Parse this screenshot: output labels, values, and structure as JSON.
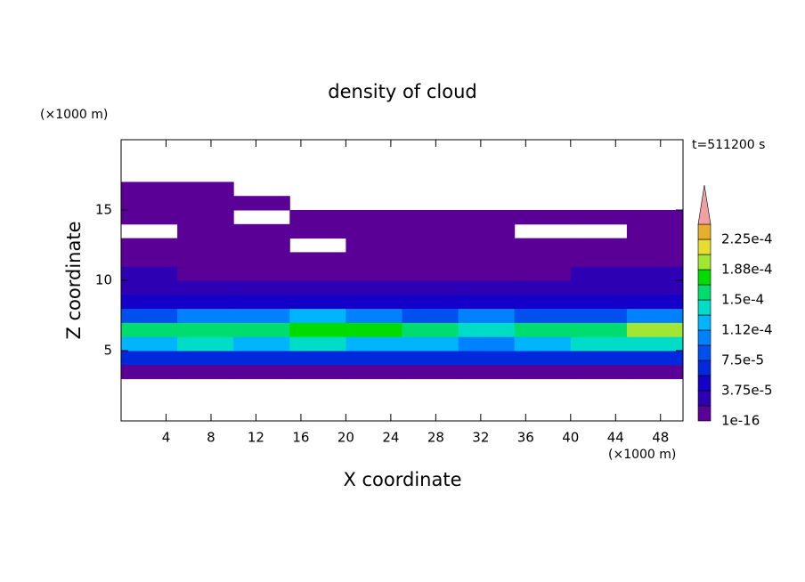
{
  "chart_data": {
    "type": "contour",
    "title": "density of cloud",
    "xlabel": "X coordinate",
    "ylabel": "Z coordinate",
    "x_unit": "(×1000 m)",
    "y_unit": "(×1000 m)",
    "annotation": "t=511200 s",
    "xlim": [
      0,
      50
    ],
    "ylim": [
      0,
      20
    ],
    "xticks": [
      4,
      8,
      12,
      16,
      20,
      24,
      28,
      32,
      36,
      40,
      44,
      48
    ],
    "yticks": [
      5,
      10,
      15
    ],
    "x": [
      2.5,
      7.5,
      12.5,
      17.5,
      22.5,
      27.5,
      32.5,
      37.5,
      42.5,
      47.5
    ],
    "y": [
      3.5,
      4.5,
      5.5,
      6.5,
      7.5,
      8.5,
      9.5,
      10.5,
      11.5,
      12.5,
      13.5,
      14.5,
      15.5,
      16.5
    ],
    "values": [
      [
        1.2e-05,
        1.5e-05,
        1.2e-05,
        1.5e-05,
        1.2e-05,
        1.5e-05,
        1.8e-05,
        1.2e-05,
        1.5e-05,
        1.2e-05
      ],
      [
        6e-05,
        6.5e-05,
        6e-05,
        6.5e-05,
        6e-05,
        6.5e-05,
        7e-05,
        6e-05,
        6.5e-05,
        6e-05
      ],
      [
        0.00013,
        0.000135,
        0.00013,
        0.000135,
        0.00013,
        0.00013,
        0.00011,
        0.00013,
        0.000135,
        0.00014
      ],
      [
        0.00016,
        0.000165,
        0.00016,
        0.000175,
        0.00017,
        0.00016,
        0.00014,
        0.000165,
        0.00016,
        0.000195
      ],
      [
        9e-05,
        0.0001,
        0.00011,
        0.000115,
        0.0001,
        9e-05,
        0.000105,
        9e-05,
        8.5e-05,
        0.0001
      ],
      [
        4.5e-05,
        5e-05,
        5.5e-05,
        5e-05,
        4.5e-05,
        4e-05,
        4.5e-05,
        4e-05,
        4.5e-05,
        5e-05
      ],
      [
        2.5e-05,
        3e-05,
        2.5e-05,
        2.8e-05,
        2.5e-05,
        2.2e-05,
        2e-05,
        2.5e-05,
        3e-05,
        3.5e-05
      ],
      [
        2e-05,
        1.5e-05,
        1e-05,
        1.2e-05,
        1.5e-05,
        1e-05,
        1.2e-05,
        1.5e-05,
        2e-05,
        2.2e-05
      ],
      [
        1.2e-05,
        8e-06,
        6e-06,
        8e-06,
        6e-06,
        6e-06,
        5e-06,
        1e-05,
        1.2e-05,
        1.5e-05
      ],
      [
        5e-06,
        5e-06,
        4e-06,
        null,
        5e-06,
        5e-06,
        5e-06,
        5e-06,
        8e-06,
        8e-06
      ],
      [
        null,
        5e-06,
        5e-06,
        5e-06,
        5e-06,
        5e-06,
        5e-06,
        null,
        null,
        5e-06
      ],
      [
        5e-06,
        5e-06,
        null,
        3e-06,
        3e-06,
        4e-06,
        3e-06,
        3e-06,
        3e-06,
        3e-06
      ],
      [
        4e-06,
        3e-06,
        3e-06,
        null,
        null,
        null,
        null,
        null,
        null,
        null
      ],
      [
        3e-06,
        3e-06,
        null,
        null,
        null,
        null,
        null,
        null,
        null,
        null
      ]
    ],
    "levels": [
      {
        "value": 1e-16,
        "label": "1e-16"
      },
      1.875e-05,
      {
        "value": 3.75e-05,
        "label": "3.75e-5"
      },
      5.625e-05,
      {
        "value": 7.5e-05,
        "label": "7.5e-5"
      },
      9.375e-05,
      {
        "value": 0.000112,
        "label": "1.12e-4"
      },
      0.00013125,
      {
        "value": 0.00015,
        "label": "1.5e-4"
      },
      0.00016875,
      {
        "value": 0.000188,
        "label": "1.88e-4"
      },
      0.00020625,
      {
        "value": 0.000225,
        "label": "2.25e-4"
      },
      0.00024375
    ],
    "colors": [
      "#5a0096",
      "#2d00b4",
      "#1400c8",
      "#0028dc",
      "#0050f0",
      "#0082ff",
      "#00b4ff",
      "#00dcc8",
      "#00dc6e",
      "#00dc00",
      "#a0e632",
      "#e6dc32",
      "#e6af2d",
      "#f06e28",
      "#f0a0a0"
    ]
  }
}
